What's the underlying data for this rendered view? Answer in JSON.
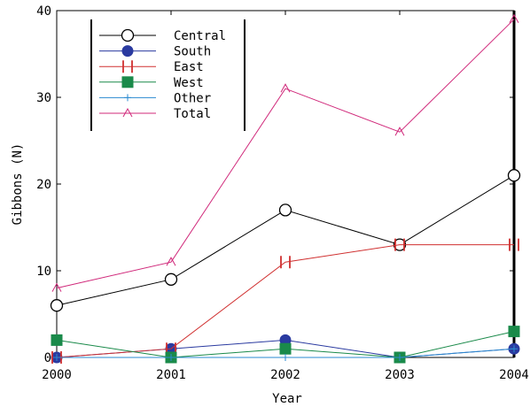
{
  "chart_data": {
    "type": "line",
    "x": [
      2000,
      2001,
      2002,
      2003,
      2004
    ],
    "xlabel": "Year",
    "ylabel": "Gibbons (N)",
    "xlim": [
      2000,
      2004
    ],
    "ylim": [
      0,
      40
    ],
    "x_ticks": [
      "2000",
      "2001",
      "2002",
      "2003",
      "2004"
    ],
    "y_ticks": [
      "0",
      "10",
      "20",
      "30",
      "40"
    ],
    "grid": false,
    "legend_position": "top-left",
    "series": [
      {
        "name": "Central",
        "values": [
          6,
          9,
          17,
          13,
          21
        ],
        "color": "#000000",
        "marker": "open-circle"
      },
      {
        "name": "South",
        "values": [
          0,
          1,
          2,
          0,
          1
        ],
        "color": "#2a3aa0",
        "marker": "filled-circle"
      },
      {
        "name": "East",
        "values": [
          0,
          1,
          11,
          13,
          13
        ],
        "color": "#d03030",
        "marker": "bar-pair"
      },
      {
        "name": "West",
        "values": [
          2,
          0,
          1,
          0,
          3
        ],
        "color": "#1a8a4a",
        "marker": "filled-square"
      },
      {
        "name": "Other",
        "values": [
          0,
          0,
          0,
          0,
          1
        ],
        "color": "#2a8ad0",
        "marker": "plus"
      },
      {
        "name": "Total",
        "values": [
          8,
          11,
          31,
          26,
          39
        ],
        "color": "#d0287a",
        "marker": "caret"
      }
    ]
  }
}
